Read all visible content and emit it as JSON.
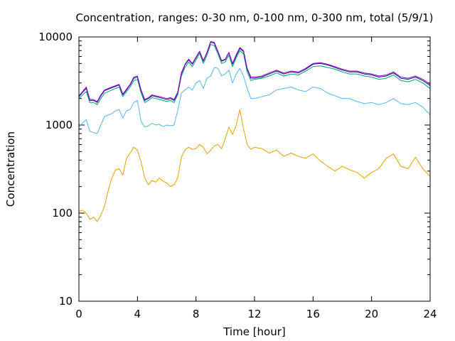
{
  "chart_data": {
    "type": "line",
    "title": "Concentration, ranges: 0-30 nm, 0-100 nm, 0-300 nm, total (5/9/1)",
    "xlabel": "Time [hour]",
    "ylabel": "Concentration",
    "xlim": [
      0,
      24
    ],
    "ylim": [
      10,
      10000
    ],
    "yscale": "log",
    "xticks": [
      0,
      4,
      8,
      12,
      16,
      20,
      24
    ],
    "yticks": [
      10,
      100,
      1000,
      10000
    ],
    "grid": false,
    "legend": "none",
    "series": [
      {
        "color": "#e69f00",
        "x": [
          0,
          0.25,
          0.5,
          0.75,
          1,
          1.25,
          1.5,
          1.75,
          2,
          2.25,
          2.5,
          2.75,
          3,
          3.25,
          3.5,
          3.75,
          4,
          4.25,
          4.5,
          4.75,
          5,
          5.25,
          5.5,
          5.75,
          6,
          6.25,
          6.5,
          6.75,
          7,
          7.25,
          7.5,
          7.75,
          8,
          8.25,
          8.5,
          8.75,
          9,
          9.25,
          9.5,
          9.75,
          10,
          10.25,
          10.5,
          10.75,
          11,
          11.25,
          11.5,
          11.75,
          12,
          12.5,
          13,
          13.5,
          14,
          14.5,
          15,
          15.5,
          16,
          16.5,
          17,
          17.5,
          18,
          18.5,
          19,
          19.5,
          20,
          20.5,
          21,
          21.5,
          22,
          22.5,
          23,
          23.5,
          24
        ],
        "y": [
          105,
          108,
          100,
          85,
          90,
          80,
          95,
          120,
          180,
          250,
          310,
          320,
          270,
          420,
          480,
          560,
          520,
          380,
          250,
          210,
          235,
          225,
          250,
          230,
          220,
          200,
          210,
          250,
          430,
          520,
          560,
          530,
          540,
          600,
          560,
          470,
          520,
          580,
          600,
          540,
          700,
          950,
          780,
          1000,
          1500,
          900,
          600,
          530,
          560,
          540,
          480,
          520,
          440,
          480,
          440,
          420,
          470,
          390,
          340,
          300,
          340,
          310,
          290,
          250,
          290,
          320,
          420,
          470,
          340,
          320,
          430,
          320,
          260
        ]
      },
      {
        "color": "#56b4e9",
        "x": [
          0,
          0.25,
          0.5,
          0.75,
          1,
          1.25,
          1.5,
          1.75,
          2,
          2.25,
          2.5,
          2.75,
          3,
          3.25,
          3.5,
          3.75,
          4,
          4.25,
          4.5,
          4.75,
          5,
          5.25,
          5.5,
          5.75,
          6,
          6.25,
          6.5,
          6.75,
          7,
          7.25,
          7.5,
          7.75,
          8,
          8.25,
          8.5,
          8.75,
          9,
          9.25,
          9.5,
          9.75,
          10,
          10.25,
          10.5,
          10.75,
          11,
          11.25,
          11.5,
          11.75,
          12,
          12.5,
          13,
          13.5,
          14,
          14.5,
          15,
          15.5,
          16,
          16.5,
          17,
          17.5,
          18,
          18.5,
          19,
          19.5,
          20,
          20.5,
          21,
          21.5,
          22,
          22.5,
          23,
          23.5,
          24
        ],
        "y": [
          950,
          1050,
          1150,
          850,
          820,
          800,
          1000,
          1250,
          1300,
          1350,
          1450,
          1500,
          1200,
          1450,
          1500,
          1800,
          1900,
          1100,
          950,
          980,
          1050,
          1000,
          1020,
          960,
          1000,
          980,
          1000,
          1450,
          2300,
          2500,
          2700,
          2500,
          3000,
          3200,
          2600,
          3400,
          3600,
          4500,
          4400,
          3600,
          3800,
          4200,
          3000,
          3800,
          4400,
          3600,
          2600,
          2000,
          2000,
          2100,
          2200,
          2500,
          2600,
          2700,
          2500,
          2400,
          2700,
          2600,
          2300,
          2150,
          2000,
          2000,
          1850,
          1750,
          1800,
          1700,
          1800,
          2000,
          1750,
          1700,
          1800,
          1600,
          1300
        ]
      },
      {
        "color": "#009e73",
        "x": [
          0,
          0.25,
          0.5,
          0.75,
          1,
          1.25,
          1.5,
          1.75,
          2,
          2.25,
          2.5,
          2.75,
          3,
          3.25,
          3.5,
          3.75,
          4,
          4.25,
          4.5,
          4.75,
          5,
          5.25,
          5.5,
          5.75,
          6,
          6.25,
          6.5,
          6.75,
          7,
          7.25,
          7.5,
          7.75,
          8,
          8.25,
          8.5,
          8.75,
          9,
          9.25,
          9.5,
          9.75,
          10,
          10.25,
          10.5,
          10.75,
          11,
          11.25,
          11.5,
          11.75,
          12,
          12.5,
          13,
          13.5,
          14,
          14.5,
          15,
          15.5,
          16,
          16.5,
          17,
          17.5,
          18,
          18.5,
          19,
          19.5,
          20,
          20.5,
          21,
          21.5,
          22,
          22.5,
          23,
          23.5,
          24
        ],
        "y": [
          2000,
          2200,
          2400,
          1800,
          1800,
          1700,
          2000,
          2300,
          2400,
          2500,
          2600,
          2700,
          2100,
          2400,
          2700,
          3200,
          3300,
          2300,
          1800,
          1900,
          2050,
          2000,
          1950,
          1900,
          1850,
          1900,
          1800,
          2200,
          3600,
          4500,
          5200,
          4600,
          5500,
          6500,
          5000,
          6200,
          8200,
          8000,
          6400,
          5000,
          5200,
          6200,
          4600,
          5800,
          7000,
          6400,
          4000,
          3200,
          3300,
          3400,
          3600,
          3900,
          3600,
          3800,
          3700,
          4100,
          4600,
          4700,
          4500,
          4300,
          4000,
          3800,
          3800,
          3600,
          3500,
          3300,
          3400,
          3700,
          3200,
          3100,
          3300,
          3000,
          2600
        ]
      },
      {
        "color": "#0b1e7c",
        "x": [
          0,
          0.25,
          0.5,
          0.75,
          1,
          1.25,
          1.5,
          1.75,
          2,
          2.25,
          2.5,
          2.75,
          3,
          3.25,
          3.5,
          3.75,
          4,
          4.25,
          4.5,
          4.75,
          5,
          5.25,
          5.5,
          5.75,
          6,
          6.25,
          6.5,
          6.75,
          7,
          7.25,
          7.5,
          7.75,
          8,
          8.25,
          8.5,
          8.75,
          9,
          9.25,
          9.5,
          9.75,
          10,
          10.25,
          10.5,
          10.75,
          11,
          11.25,
          11.5,
          11.75,
          12,
          12.5,
          13,
          13.5,
          14,
          14.5,
          15,
          15.5,
          16,
          16.5,
          17,
          17.5,
          18,
          18.5,
          19,
          19.5,
          20,
          20.5,
          21,
          21.5,
          22,
          22.5,
          23,
          23.5,
          24
        ],
        "y": [
          2100,
          2350,
          2600,
          1900,
          1900,
          1800,
          2150,
          2450,
          2550,
          2650,
          2750,
          2850,
          2200,
          2500,
          2850,
          3400,
          3500,
          2450,
          1900,
          2000,
          2150,
          2100,
          2050,
          2000,
          1950,
          2000,
          1900,
          2300,
          3800,
          4800,
          5500,
          4900,
          5800,
          6800,
          5300,
          6600,
          8700,
          8500,
          6800,
          5300,
          5500,
          6600,
          4900,
          6100,
          7400,
          6800,
          4300,
          3400,
          3400,
          3500,
          3800,
          4100,
          3800,
          4000,
          3900,
          4300,
          4900,
          5000,
          4800,
          4500,
          4200,
          4000,
          4000,
          3800,
          3700,
          3500,
          3600,
          3900,
          3400,
          3300,
          3500,
          3200,
          2800
        ]
      },
      {
        "color": "#9400d3",
        "x": [
          0,
          0.25,
          0.5,
          0.75,
          1,
          1.25,
          1.5,
          1.75,
          2,
          2.25,
          2.5,
          2.75,
          3,
          3.25,
          3.5,
          3.75,
          4,
          4.25,
          4.5,
          4.75,
          5,
          5.25,
          5.5,
          5.75,
          6,
          6.25,
          6.5,
          6.75,
          7,
          7.25,
          7.5,
          7.75,
          8,
          8.25,
          8.5,
          8.75,
          9,
          9.25,
          9.5,
          9.75,
          10,
          10.25,
          10.5,
          10.75,
          11,
          11.25,
          11.5,
          11.75,
          12,
          12.5,
          13,
          13.5,
          14,
          14.5,
          15,
          15.5,
          16,
          16.5,
          17,
          17.5,
          18,
          18.5,
          19,
          19.5,
          20,
          20.5,
          21,
          21.5,
          22,
          22.5,
          23,
          23.5,
          24
        ],
        "y": [
          2150,
          2400,
          2700,
          1950,
          1950,
          1850,
          2200,
          2500,
          2600,
          2700,
          2800,
          2900,
          2250,
          2550,
          2900,
          3500,
          3600,
          2500,
          1950,
          2050,
          2200,
          2150,
          2100,
          2050,
          2000,
          2050,
          1950,
          2350,
          3900,
          4900,
          5600,
          5000,
          5900,
          6900,
          5400,
          6700,
          8900,
          8700,
          6900,
          5400,
          5600,
          6700,
          5000,
          6300,
          7600,
          7000,
          4400,
          3500,
          3500,
          3600,
          3900,
          4200,
          3900,
          4100,
          4000,
          4400,
          5000,
          5100,
          4900,
          4600,
          4300,
          4100,
          4100,
          3900,
          3800,
          3600,
          3700,
          4000,
          3500,
          3400,
          3600,
          3300,
          2900
        ]
      }
    ]
  }
}
